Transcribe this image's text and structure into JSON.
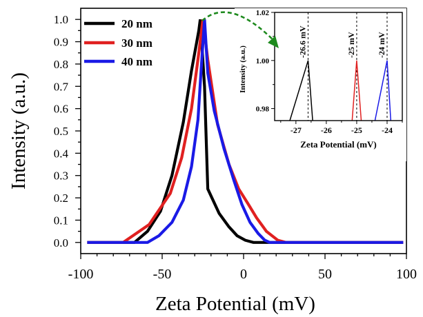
{
  "chart_data": [
    {
      "type": "line",
      "xlabel": "Zeta Potential (mV)",
      "ylabel": "Intensity (a.u.)",
      "xlim": [
        -100,
        100
      ],
      "ylim": [
        -0.05,
        1.05
      ],
      "x_ticks": [
        -100,
        -50,
        0,
        50,
        100
      ],
      "x_tick_labels": [
        "-100",
        "-50",
        "0",
        "50",
        "100"
      ],
      "y_ticks": [
        0.0,
        0.1,
        0.2,
        0.3,
        0.4,
        0.5,
        0.6,
        0.7,
        0.8,
        0.9,
        1.0
      ],
      "y_tick_labels": [
        "0.0",
        "0.1",
        "0.2",
        "0.3",
        "0.4",
        "0.5",
        "0.6",
        "0.7",
        "0.8",
        "0.9",
        "1.0"
      ],
      "grid": false,
      "legend_position": "top-left",
      "series": [
        {
          "name": "20 nm",
          "color": "#000000",
          "points": [
            [
              -96,
              0
            ],
            [
              -67,
              0
            ],
            [
              -59,
              0.05
            ],
            [
              -51,
              0.14
            ],
            [
              -44,
              0.3
            ],
            [
              -37,
              0.54
            ],
            [
              -32,
              0.77
            ],
            [
              -27.5,
              0.95
            ],
            [
              -26.6,
              1.0
            ],
            [
              -24,
              0.7
            ],
            [
              -22,
              0.24
            ],
            [
              -15,
              0.13
            ],
            [
              -9,
              0.07
            ],
            [
              -4,
              0.03
            ],
            [
              1,
              0.01
            ],
            [
              6,
              0
            ],
            [
              10,
              0
            ],
            [
              98,
              0
            ]
          ]
        },
        {
          "name": "30 nm",
          "color": "#e02020",
          "points": [
            [
              -96,
              0
            ],
            [
              -74,
              0
            ],
            [
              -58,
              0.08
            ],
            [
              -45,
              0.22
            ],
            [
              -38,
              0.38
            ],
            [
              -32,
              0.6
            ],
            [
              -27.5,
              0.85
            ],
            [
              -25,
              1.0
            ],
            [
              -22,
              0.82
            ],
            [
              -16,
              0.53
            ],
            [
              -9,
              0.35
            ],
            [
              -3,
              0.24
            ],
            [
              3,
              0.17
            ],
            [
              8,
              0.11
            ],
            [
              14,
              0.05
            ],
            [
              21,
              0.01
            ],
            [
              26,
              0
            ],
            [
              98,
              0
            ]
          ]
        },
        {
          "name": "40 nm",
          "color": "#1a1ae6",
          "points": [
            [
              -96,
              0
            ],
            [
              -59,
              0
            ],
            [
              -52,
              0.03
            ],
            [
              -44,
              0.09
            ],
            [
              -37,
              0.19
            ],
            [
              -32,
              0.34
            ],
            [
              -28,
              0.55
            ],
            [
              -26,
              0.78
            ],
            [
              -24,
              1.0
            ],
            [
              -22,
              0.76
            ],
            [
              -18,
              0.59
            ],
            [
              -12,
              0.42
            ],
            [
              -6,
              0.28
            ],
            [
              -1,
              0.17
            ],
            [
              4,
              0.09
            ],
            [
              9,
              0.04
            ],
            [
              13,
              0.01
            ],
            [
              16,
              0
            ],
            [
              98,
              0
            ]
          ]
        }
      ]
    },
    {
      "type": "line",
      "xlabel": "Zeta Potential (mV)",
      "ylabel": "Intensity (a.u.)",
      "xlim": [
        -27.7,
        -23.5
      ],
      "ylim": [
        0.975,
        1.02
      ],
      "x_ticks": [
        -27,
        -26,
        -25,
        -24
      ],
      "x_tick_labels": [
        "-27",
        "-26",
        "-25",
        "-24"
      ],
      "y_ticks": [
        0.98,
        1.0,
        1.02
      ],
      "y_tick_labels": [
        "0.98",
        "1.00",
        "1.02"
      ],
      "grid": false,
      "annotations": [
        {
          "x": -26.6,
          "text": "-26.6 mV"
        },
        {
          "x": -25,
          "text": "-25 mV"
        },
        {
          "x": -24,
          "text": "-24 mV"
        }
      ],
      "series": [
        {
          "name": "20 nm",
          "color": "#000000",
          "points": [
            [
              -27.2,
              0.975
            ],
            [
              -26.6,
              1.0
            ],
            [
              -26.45,
              0.975
            ]
          ]
        },
        {
          "name": "30 nm",
          "color": "#e02020",
          "points": [
            [
              -25.15,
              0.975
            ],
            [
              -25.0,
              1.0
            ],
            [
              -24.85,
              0.975
            ]
          ]
        },
        {
          "name": "40 nm",
          "color": "#1a1ae6",
          "points": [
            [
              -24.4,
              0.975
            ],
            [
              -24.0,
              1.0
            ],
            [
              -23.88,
              0.975
            ]
          ]
        }
      ]
    }
  ]
}
